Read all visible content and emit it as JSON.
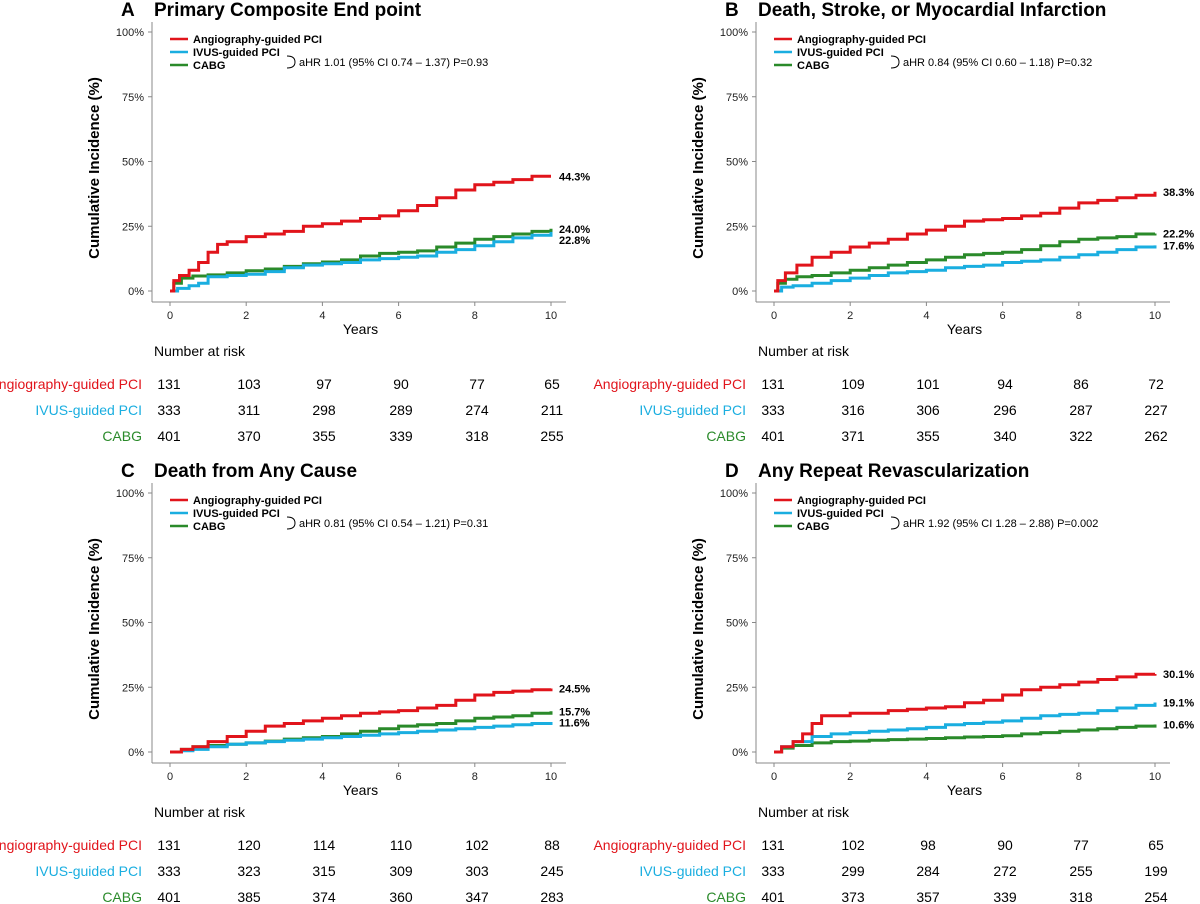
{
  "colors": {
    "angio": "#e1141b",
    "ivus": "#1aaee0",
    "cabg": "#2a8a2a",
    "axis": "#888888"
  },
  "legend_labels": [
    "Angiography-guided PCI",
    "IVUS-guided PCI",
    "CABG"
  ],
  "risk_header": "Number at risk",
  "chart_data": [
    {
      "type": "line",
      "panel": "A",
      "title": "Primary Composite End point",
      "xlabel": "Years",
      "ylabel": "Cumulative Incidence (%)",
      "xlim": [
        0,
        10
      ],
      "ylim": [
        0,
        100
      ],
      "xticks": [
        0,
        2,
        4,
        6,
        8,
        10
      ],
      "ytick_labels": [
        "0%",
        "25%",
        "50%",
        "75%",
        "100%"
      ],
      "hr_text": "aHR 1.01 (95% CI 0.74 – 1.37) P=0.93",
      "series": [
        {
          "name": "Angiography-guided PCI",
          "key": "angio",
          "end_label": "44.3%",
          "x": [
            0,
            0.1,
            0.25,
            0.5,
            0.75,
            1.0,
            1.25,
            1.5,
            2.0,
            2.5,
            3.0,
            3.5,
            4.0,
            4.5,
            5.0,
            5.5,
            6.0,
            6.5,
            7.0,
            7.5,
            8.0,
            8.5,
            9.0,
            9.5,
            10.0
          ],
          "y": [
            0,
            4,
            6,
            8,
            11,
            15,
            18,
            19,
            21,
            22,
            23,
            25,
            26,
            27,
            28,
            29,
            31,
            33,
            36,
            39,
            41,
            42,
            43,
            44.3,
            44.3
          ]
        },
        {
          "name": "IVUS-guided PCI",
          "key": "ivus",
          "end_label": "22.8%",
          "x": [
            0,
            0.2,
            0.5,
            0.75,
            1.0,
            1.5,
            2.0,
            2.5,
            3.0,
            3.5,
            4.0,
            4.5,
            5.0,
            5.5,
            6.0,
            6.5,
            7.0,
            7.5,
            8.0,
            8.5,
            9.0,
            9.5,
            10.0
          ],
          "y": [
            0,
            1,
            2,
            3,
            5.5,
            6,
            6.5,
            7.5,
            9,
            10,
            10.5,
            11,
            12,
            12.5,
            13,
            13.5,
            15,
            16,
            17.5,
            19,
            20.5,
            21.5,
            22.8
          ]
        },
        {
          "name": "CABG",
          "key": "cabg",
          "end_label": "24.0%",
          "x": [
            0,
            0.1,
            0.3,
            0.6,
            1.0,
            1.5,
            2.0,
            2.5,
            3.0,
            3.5,
            4.0,
            4.5,
            5.0,
            5.5,
            6.0,
            6.5,
            7.0,
            7.5,
            8.0,
            8.5,
            9.0,
            9.5,
            10.0
          ],
          "y": [
            0,
            3,
            5,
            5.8,
            6.2,
            7,
            7.8,
            8.5,
            9.5,
            10.5,
            11.2,
            12,
            13.5,
            14.5,
            15,
            15.5,
            17,
            18.5,
            20,
            21,
            22,
            23,
            24.0
          ]
        }
      ],
      "risk_table": {
        "times": [
          0,
          2,
          4,
          6,
          8,
          10
        ],
        "rows": [
          {
            "label": "Angiography-guided PCI",
            "key": "angio",
            "values": [
              "131",
              "103",
              "97",
              "90",
              "77",
              "65"
            ]
          },
          {
            "label": "IVUS-guided PCI",
            "key": "ivus",
            "values": [
              "333",
              "311",
              "298",
              "289",
              "274",
              "211"
            ]
          },
          {
            "label": "CABG",
            "key": "cabg",
            "values": [
              "401",
              "370",
              "355",
              "339",
              "318",
              "255"
            ]
          }
        ]
      }
    },
    {
      "type": "line",
      "panel": "B",
      "title": "Death, Stroke, or Myocardial Infarction",
      "xlabel": "Years",
      "ylabel": "Cumulative Incidence (%)",
      "xlim": [
        0,
        10
      ],
      "ylim": [
        0,
        100
      ],
      "xticks": [
        0,
        2,
        4,
        6,
        8,
        10
      ],
      "ytick_labels": [
        "0%",
        "25%",
        "50%",
        "75%",
        "100%"
      ],
      "hr_text": "aHR 0.84 (95% CI 0.60 – 1.18) P=0.32",
      "series": [
        {
          "name": "Angiography-guided PCI",
          "key": "angio",
          "end_label": "38.3%",
          "x": [
            0,
            0.1,
            0.3,
            0.6,
            1.0,
            1.5,
            2.0,
            2.5,
            3.0,
            3.5,
            4.0,
            4.5,
            5.0,
            5.5,
            6.0,
            6.5,
            7.0,
            7.5,
            8.0,
            8.5,
            9.0,
            9.5,
            10.0
          ],
          "y": [
            0,
            4,
            7,
            10,
            13,
            15,
            17,
            18.5,
            20,
            22,
            23.5,
            25,
            27,
            27.5,
            28,
            29,
            30,
            32,
            34,
            35,
            36,
            37,
            38.3
          ]
        },
        {
          "name": "IVUS-guided PCI",
          "key": "ivus",
          "end_label": "17.6%",
          "x": [
            0,
            0.2,
            0.5,
            1.0,
            1.5,
            2.0,
            2.5,
            3.0,
            3.5,
            4.0,
            4.5,
            5.0,
            5.5,
            6.0,
            6.5,
            7.0,
            7.5,
            8.0,
            8.5,
            9.0,
            9.5,
            10.0
          ],
          "y": [
            0,
            1.5,
            2,
            3,
            4,
            5,
            6,
            7,
            7.5,
            8,
            9,
            9.5,
            10,
            11,
            11.5,
            12,
            13,
            14,
            15,
            16,
            17,
            17.6
          ]
        },
        {
          "name": "CABG",
          "key": "cabg",
          "end_label": "22.2%",
          "x": [
            0,
            0.1,
            0.3,
            0.6,
            1.0,
            1.5,
            2.0,
            2.5,
            3.0,
            3.5,
            4.0,
            4.5,
            5.0,
            5.5,
            6.0,
            6.5,
            7.0,
            7.5,
            8.0,
            8.5,
            9.0,
            9.5,
            10.0
          ],
          "y": [
            0,
            3,
            4.5,
            5.5,
            6,
            7,
            8,
            9,
            10,
            11,
            12,
            13,
            14,
            14.5,
            15,
            16,
            17.5,
            19,
            20,
            20.5,
            21,
            22,
            22.2
          ]
        }
      ],
      "risk_table": {
        "times": [
          0,
          2,
          4,
          6,
          8,
          10
        ],
        "rows": [
          {
            "label": "Angiography-guided PCI",
            "key": "angio",
            "values": [
              "131",
              "109",
              "101",
              "94",
              "86",
              "72"
            ]
          },
          {
            "label": "IVUS-guided PCI",
            "key": "ivus",
            "values": [
              "333",
              "316",
              "306",
              "296",
              "287",
              "227"
            ]
          },
          {
            "label": "CABG",
            "key": "cabg",
            "values": [
              "401",
              "371",
              "355",
              "340",
              "322",
              "262"
            ]
          }
        ]
      }
    },
    {
      "type": "line",
      "panel": "C",
      "title": "Death from Any Cause",
      "xlabel": "Years",
      "ylabel": "Cumulative Incidence (%)",
      "xlim": [
        0,
        10
      ],
      "ylim": [
        0,
        100
      ],
      "xticks": [
        0,
        2,
        4,
        6,
        8,
        10
      ],
      "ytick_labels": [
        "0%",
        "25%",
        "50%",
        "75%",
        "100%"
      ],
      "hr_text": "aHR 0.81 (95% CI 0.54 – 1.21) P=0.31",
      "series": [
        {
          "name": "Angiography-guided PCI",
          "key": "angio",
          "end_label": "24.5%",
          "x": [
            0,
            0.3,
            0.6,
            1.0,
            1.5,
            2.0,
            2.5,
            3.0,
            3.5,
            4.0,
            4.5,
            5.0,
            5.5,
            6.0,
            6.5,
            7.0,
            7.5,
            8.0,
            8.5,
            9.0,
            9.5,
            10.0
          ],
          "y": [
            0,
            1,
            2,
            4,
            6,
            8,
            10,
            11,
            12,
            13,
            14,
            15,
            15.5,
            16,
            17,
            18,
            20,
            22,
            23,
            23.5,
            24,
            24.5
          ]
        },
        {
          "name": "IVUS-guided PCI",
          "key": "ivus",
          "end_label": "11.6%",
          "x": [
            0,
            0.3,
            0.6,
            1.0,
            1.5,
            2.0,
            2.5,
            3.0,
            3.5,
            4.0,
            4.5,
            5.0,
            5.5,
            6.0,
            6.5,
            7.0,
            7.5,
            8.0,
            8.5,
            9.0,
            9.5,
            10.0
          ],
          "y": [
            0,
            0.5,
            1,
            2,
            3,
            3.5,
            4,
            4.5,
            5,
            5.5,
            6,
            6.5,
            7,
            7.5,
            8,
            8.5,
            9,
            9.5,
            10,
            10.5,
            11,
            11.6
          ]
        },
        {
          "name": "CABG",
          "key": "cabg",
          "end_label": "15.7%",
          "x": [
            0,
            0.3,
            0.6,
            1.0,
            1.5,
            2.0,
            2.5,
            3.0,
            3.5,
            4.0,
            4.5,
            5.0,
            5.5,
            6.0,
            6.5,
            7.0,
            7.5,
            8.0,
            8.5,
            9.0,
            9.5,
            10.0
          ],
          "y": [
            0,
            1,
            2,
            2.5,
            3,
            3.5,
            4.2,
            5,
            5.5,
            6,
            7,
            8,
            9,
            10,
            10.5,
            11,
            12,
            13,
            13.5,
            14,
            15,
            15.7
          ]
        }
      ],
      "risk_table": {
        "times": [
          0,
          2,
          4,
          6,
          8,
          10
        ],
        "rows": [
          {
            "label": "Angiography-guided PCI",
            "key": "angio",
            "values": [
              "131",
              "120",
              "114",
              "110",
              "102",
              "88"
            ]
          },
          {
            "label": "IVUS-guided PCI",
            "key": "ivus",
            "values": [
              "333",
              "323",
              "315",
              "309",
              "303",
              "245"
            ]
          },
          {
            "label": "CABG",
            "key": "cabg",
            "values": [
              "401",
              "385",
              "374",
              "360",
              "347",
              "283"
            ]
          }
        ]
      }
    },
    {
      "type": "line",
      "panel": "D",
      "title": "Any Repeat Revascularization",
      "xlabel": "Years",
      "ylabel": "Cumulative Incidence (%)",
      "xlim": [
        0,
        10
      ],
      "ylim": [
        0,
        100
      ],
      "xticks": [
        0,
        2,
        4,
        6,
        8,
        10
      ],
      "ytick_labels": [
        "0%",
        "25%",
        "50%",
        "75%",
        "100%"
      ],
      "hr_text": "aHR 1.92 (95% CI 1.28 – 2.88) P=0.002",
      "series": [
        {
          "name": "Angiography-guided PCI",
          "key": "angio",
          "end_label": "30.1%",
          "x": [
            0,
            0.2,
            0.5,
            0.75,
            1.0,
            1.25,
            2.0,
            3.0,
            3.5,
            4.0,
            4.5,
            5.0,
            5.5,
            6.0,
            6.5,
            7.0,
            7.5,
            8.0,
            8.5,
            9.0,
            9.5,
            10.0
          ],
          "y": [
            0,
            2,
            4,
            7,
            11,
            14,
            15,
            16,
            16.5,
            17,
            17.5,
            19,
            20,
            22,
            24,
            25,
            26,
            27,
            28,
            29,
            30,
            30.1
          ]
        },
        {
          "name": "IVUS-guided PCI",
          "key": "ivus",
          "end_label": "19.1%",
          "x": [
            0,
            0.2,
            0.5,
            1.0,
            1.5,
            2.0,
            2.5,
            3.0,
            3.5,
            4.0,
            4.5,
            5.0,
            5.5,
            6.0,
            6.5,
            7.0,
            7.5,
            8.0,
            8.5,
            9.0,
            9.5,
            10.0
          ],
          "y": [
            0,
            2,
            4,
            6,
            7,
            7.5,
            8,
            8.5,
            9,
            9.5,
            10.5,
            11,
            11.5,
            12,
            13,
            14,
            14.5,
            15,
            16,
            17,
            18,
            19.1
          ]
        },
        {
          "name": "CABG",
          "key": "cabg",
          "end_label": "10.6%",
          "x": [
            0,
            0.2,
            0.5,
            1.0,
            1.5,
            2.0,
            2.5,
            3.0,
            3.5,
            4.0,
            4.5,
            5.0,
            5.5,
            6.0,
            6.5,
            7.0,
            7.5,
            8.0,
            8.5,
            9.0,
            9.5,
            10.0
          ],
          "y": [
            0,
            1.5,
            2.5,
            3.5,
            4,
            4.2,
            4.5,
            4.8,
            5,
            5.2,
            5.5,
            5.8,
            6,
            6.3,
            7,
            7.5,
            8,
            8.5,
            9,
            9.5,
            10,
            10.6
          ]
        }
      ],
      "risk_table": {
        "times": [
          0,
          2,
          4,
          6,
          8,
          10
        ],
        "rows": [
          {
            "label": "Angiography-guided PCI",
            "key": "angio",
            "values": [
              "131",
              "102",
              "98",
              "90",
              "77",
              "65"
            ]
          },
          {
            "label": "IVUS-guided PCI",
            "key": "ivus",
            "values": [
              "333",
              "299",
              "284",
              "272",
              "255",
              "199"
            ]
          },
          {
            "label": "CABG",
            "key": "cabg",
            "values": [
              "401",
              "373",
              "357",
              "339",
              "318",
              "254"
            ]
          }
        ]
      }
    }
  ]
}
